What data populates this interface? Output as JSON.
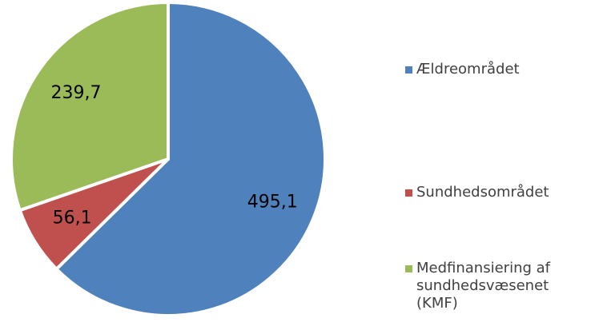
{
  "chart_data": {
    "type": "pie",
    "categories": [
      "Ældreområdet",
      "Sundhedsområdet",
      "Medfinansiering af sundhedsvæsenet (KMF)"
    ],
    "values": [
      495.1,
      56.1,
      239.7
    ],
    "value_labels": [
      "495,1",
      "56,1",
      "239,7"
    ],
    "colors": [
      "#4f81bd",
      "#c0504d",
      "#9bbb59"
    ],
    "legend": "right"
  }
}
